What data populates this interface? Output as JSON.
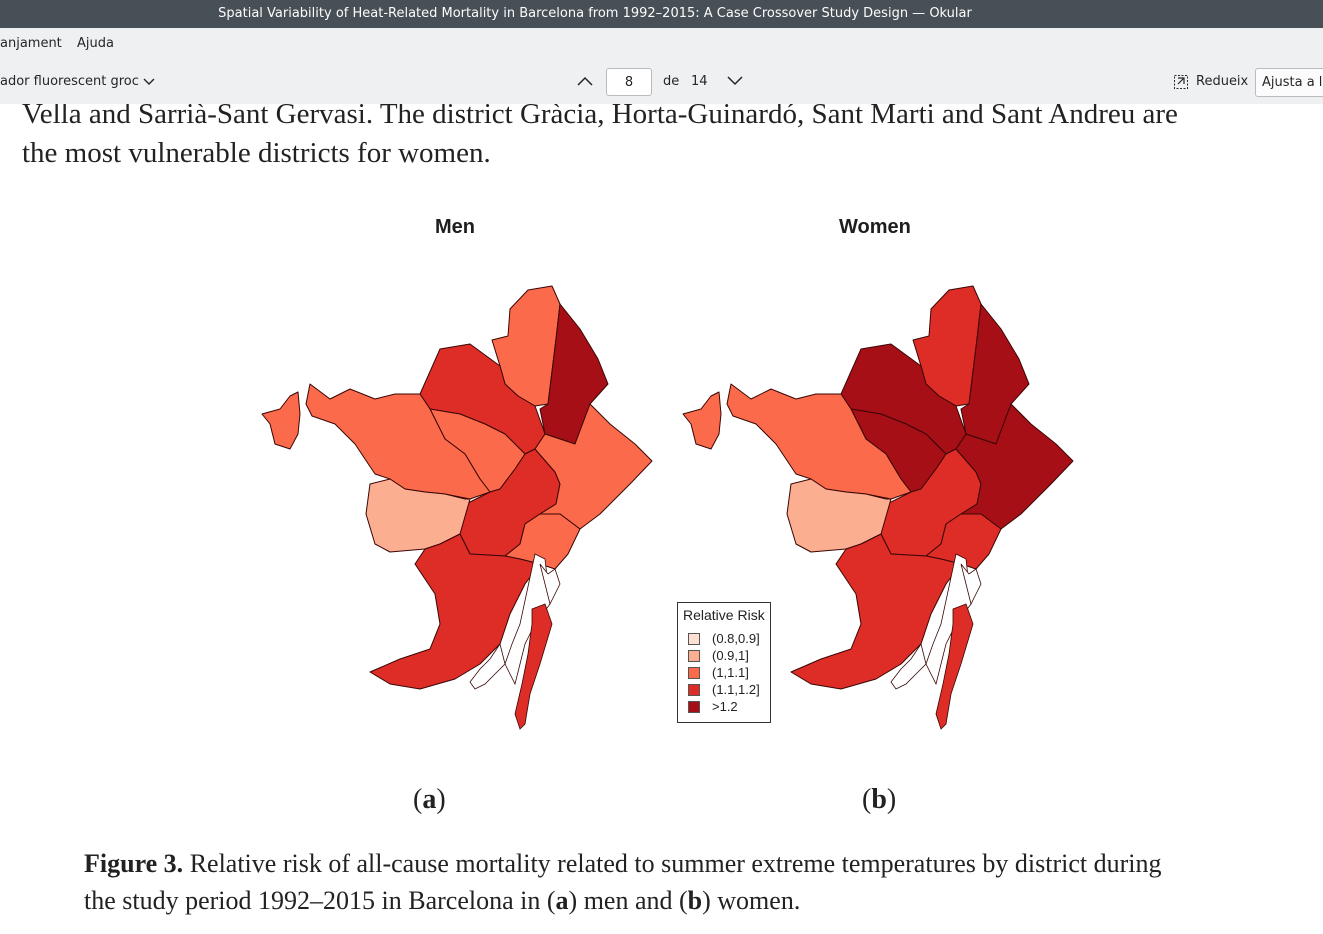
{
  "window": {
    "title": "Spatial Variability of Heat-Related Mortality in Barcelona from 1992–2015: A Case Crossover Study Design — Okular"
  },
  "menubar": {
    "items": [
      "anjament",
      "Ajuda"
    ]
  },
  "toolbar": {
    "annotation_tool": "ador fluorescent groc",
    "page_current": "8",
    "page_of": "de",
    "page_total": "14",
    "trim_label": "Redueix",
    "fit_mode": "Ajusta a l'a"
  },
  "document": {
    "line1": "Vella and Sarrià-Sant Gervasi. The district Gràcia, Horta-Guinardó, Sant Marti and Sant Andreu are",
    "line2": "the most vulnerable districts for women.",
    "map_men_title": "Men",
    "map_women_title": "Women",
    "sublabel_a_open": "(",
    "sublabel_a": "a",
    "sublabel_a_close": ")",
    "sublabel_b_open": "(",
    "sublabel_b": "b",
    "sublabel_b_close": ")",
    "caption": {
      "label": "Figure 3.",
      "line1_rest": " Relative risk of all-cause mortality related to summer extreme temperatures by district during",
      "line2_a": "the study period 1992–2015 in Barcelona in (",
      "line2_b1": "a",
      "line2_c": ") men and (",
      "line2_b2": "b",
      "line2_d": ") women."
    }
  },
  "legend": {
    "title": "Relative Risk",
    "items": [
      {
        "label": "(0.8,0.9]",
        "color": "#fee0d2"
      },
      {
        "label": "(0.9,1]",
        "color": "#fcae91"
      },
      {
        "label": "(1,1.1]",
        "color": "#fb6a4a"
      },
      {
        "label": "(1.1,1.2]",
        "color": "#de2d26"
      },
      {
        "label": ">1.2",
        "color": "#a50f15"
      }
    ]
  },
  "maps": {
    "men": {
      "ciutat_vella": "(1,1.1]",
      "eixample": "(1.1,1.2]",
      "sants_montjuic": "(1.1,1.2]",
      "les_corts": "(0.9,1]",
      "sarria_sant_gervasi": "(1,1.1]",
      "gracia": "(1,1.1]",
      "horta_guinardo": "(1.1,1.2]",
      "nou_barris": "(1,1.1]",
      "sant_andreu": ">1.2",
      "sant_marti": "(1,1.1]"
    },
    "women": {
      "ciutat_vella": "(1.1,1.2]",
      "eixample": "(1.1,1.2]",
      "sants_montjuic": "(1.1,1.2]",
      "les_corts": "(0.9,1]",
      "sarria_sant_gervasi": "(1,1.1]",
      "gracia": ">1.2",
      "horta_guinardo": ">1.2",
      "nou_barris": "(1.1,1.2]",
      "sant_andreu": ">1.2",
      "sant_marti": ">1.2"
    }
  }
}
